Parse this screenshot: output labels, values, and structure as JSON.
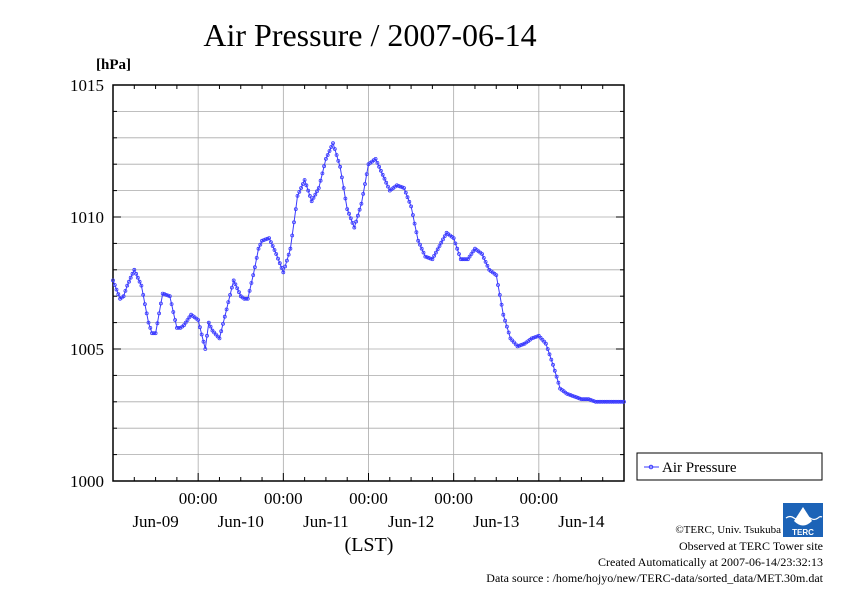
{
  "chart_data": {
    "type": "line",
    "title": "Air Pressure / 2007-06-14",
    "unit_label": "[hPa]",
    "xlabel": "(LST)",
    "ylabel": "",
    "ylim": [
      1000,
      1015
    ],
    "yticks": [
      "1000",
      "1005",
      "1010",
      "1015"
    ],
    "xlim_hours": [
      0,
      144
    ],
    "xticks": [
      {
        "time": "00:00",
        "date": "Jun-09"
      },
      {
        "time": "00:00",
        "date": "Jun-10"
      },
      {
        "time": "00:00",
        "date": "Jun-11"
      },
      {
        "time": "00:00",
        "date": "Jun-12"
      },
      {
        "time": "00:00",
        "date": "Jun-13"
      },
      {
        "time": "00:00",
        "date": "Jun-14"
      }
    ],
    "grid": true,
    "legend_position": "right",
    "series": [
      {
        "name": "Air Pressure",
        "color": "#3a3aff",
        "x_hours": [
          0,
          2,
          3,
          4,
          6,
          7,
          8,
          9,
          10,
          11,
          12,
          14,
          16,
          18,
          19,
          20,
          22,
          24,
          26,
          27,
          28,
          30,
          32,
          34,
          36,
          37,
          38,
          40,
          41,
          42,
          44,
          45,
          46,
          48,
          50,
          52,
          54,
          56,
          58,
          60,
          62,
          64,
          66,
          68,
          70,
          72,
          74,
          76,
          78,
          80,
          82,
          84,
          86,
          88,
          90,
          92,
          94,
          96,
          98,
          100,
          102,
          104,
          106,
          108,
          110,
          112,
          114,
          116,
          118,
          120,
          122,
          124,
          126,
          128,
          130,
          132,
          134,
          136,
          137,
          138,
          139,
          140,
          141,
          142,
          143,
          144
        ],
        "values": [
          1007.6,
          1006.9,
          1007.0,
          1007.4,
          1008.0,
          1007.7,
          1007.4,
          1006.7,
          1006.0,
          1005.6,
          1005.6,
          1007.1,
          1007.0,
          1005.8,
          1005.8,
          1005.9,
          1006.3,
          1006.1,
          1005.0,
          1006.0,
          1005.7,
          1005.4,
          1006.5,
          1007.6,
          1007.0,
          1006.9,
          1006.9,
          1008.1,
          1008.8,
          1009.1,
          1009.2,
          1008.9,
          1008.6,
          1007.9,
          1008.8,
          1010.8,
          1011.4,
          1010.6,
          1011.1,
          1012.2,
          1012.8,
          1011.9,
          1010.3,
          1009.6,
          1010.5,
          1012.0,
          1012.2,
          1011.6,
          1011.0,
          1011.2,
          1011.1,
          1010.4,
          1009.1,
          1008.5,
          1008.4,
          1008.9,
          1009.4,
          1009.2,
          1008.4,
          1008.4,
          1008.8,
          1008.6,
          1008.0,
          1007.8,
          1006.3,
          1005.4,
          1005.1,
          1005.2,
          1005.4,
          1005.5,
          1005.2,
          1004.4,
          1003.5,
          1003.3,
          1003.2,
          1003.1,
          1003.1,
          1003.0,
          1003.0,
          1003.0,
          1003.0,
          1003.0,
          1003.0,
          1003.0,
          1003.0,
          1003.0
        ]
      }
    ]
  },
  "footer": {
    "copyright": "©TERC, Univ. Tsukuba",
    "observed": "Observed at TERC Tower site",
    "created": "Created Automatically at 2007-06-14/23:32:13",
    "source": "Data source : /home/hojyo/new/TERC-data/sorted_data/MET.30m.dat"
  },
  "logo": {
    "text": "TERC",
    "color": "#1c63b7"
  }
}
